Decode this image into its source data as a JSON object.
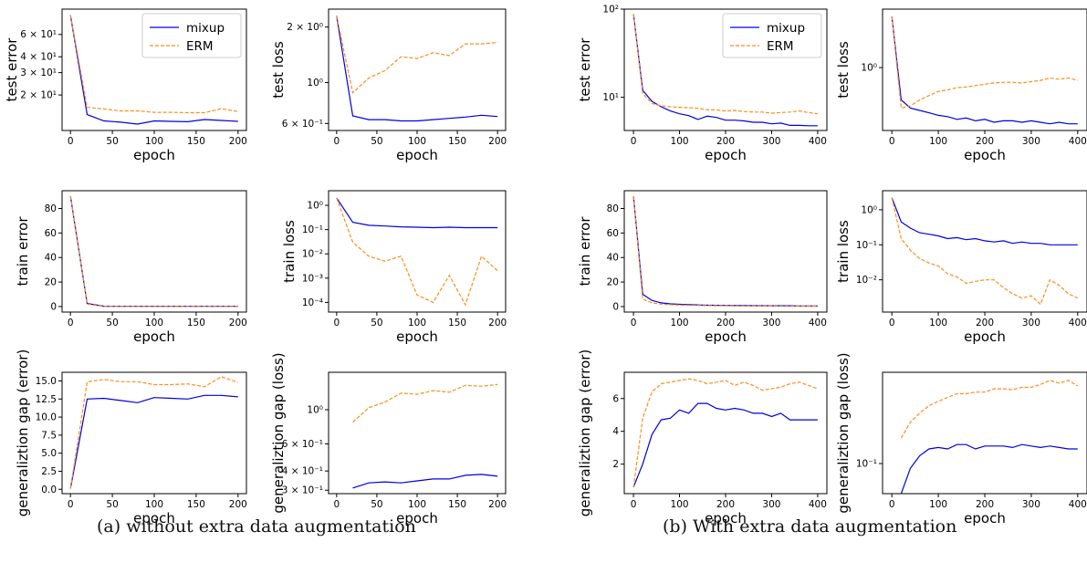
{
  "captions": {
    "a": "(a) without extra data augmentation",
    "b": "(b) With extra data augmentation"
  },
  "colors": {
    "mixup": "#0000dd",
    "erm": "#ff8c1a"
  },
  "chart_data": [
    {
      "panel": "a",
      "type": "line",
      "xlabel": "epoch",
      "ylabel": "test error",
      "yscale": "log",
      "xlim": [
        -10,
        210
      ],
      "ylim": [
        10.5,
        95
      ],
      "xticks": [
        "0",
        "50",
        "100",
        "150",
        "200"
      ],
      "yticks": [
        {
          "v": 20,
          "t": "2 × 10¹"
        },
        {
          "v": 30,
          "t": "3 × 10¹"
        },
        {
          "v": 40,
          "t": "4 × 10¹"
        },
        {
          "v": 60,
          "t": "6 × 10¹"
        }
      ],
      "legend": "top-right",
      "x": [
        0,
        20,
        40,
        60,
        80,
        100,
        120,
        140,
        160,
        180,
        200
      ],
      "series": [
        {
          "name": "mixup",
          "style": "solid",
          "values": [
            85,
            14,
            12.5,
            12.2,
            11.8,
            12.5,
            12.4,
            12.3,
            12.8,
            12.6,
            12.4
          ]
        },
        {
          "name": "ERM",
          "style": "dashed",
          "values": [
            85,
            16,
            15.5,
            15,
            15,
            14.6,
            14.6,
            14.5,
            14.5,
            15.6,
            14.8
          ]
        }
      ]
    },
    {
      "panel": "a",
      "type": "line",
      "xlabel": "epoch",
      "ylabel": "test loss",
      "yscale": "log",
      "xlim": [
        -10,
        210
      ],
      "ylim": [
        0.55,
        2.5
      ],
      "xticks": [
        "0",
        "50",
        "100",
        "150",
        "200"
      ],
      "yticks": [
        {
          "v": 0.6,
          "t": "6 × 10⁻¹"
        },
        {
          "v": 1,
          "t": "10⁰"
        },
        {
          "v": 2,
          "t": "2 × 10⁰"
        }
      ],
      "x": [
        0,
        20,
        40,
        60,
        80,
        100,
        120,
        140,
        160,
        180,
        200
      ],
      "series": [
        {
          "name": "mixup",
          "style": "solid",
          "values": [
            2.3,
            0.66,
            0.63,
            0.63,
            0.62,
            0.62,
            0.63,
            0.64,
            0.65,
            0.665,
            0.655
          ]
        },
        {
          "name": "ERM",
          "style": "dashed",
          "values": [
            2.3,
            0.88,
            1.06,
            1.16,
            1.38,
            1.35,
            1.45,
            1.4,
            1.62,
            1.62,
            1.65
          ]
        }
      ]
    },
    {
      "panel": "b",
      "type": "line",
      "xlabel": "epoch",
      "ylabel": "test error",
      "yscale": "log",
      "xlim": [
        -20,
        420
      ],
      "ylim": [
        4.2,
        100
      ],
      "xticks": [
        "0",
        "100",
        "200",
        "300",
        "400"
      ],
      "yticks": [
        {
          "v": 10,
          "t": "10¹"
        },
        {
          "v": 100,
          "t": "10²"
        }
      ],
      "legend": "top-right",
      "x": [
        0,
        20,
        40,
        60,
        80,
        100,
        120,
        140,
        160,
        180,
        200,
        220,
        240,
        260,
        280,
        300,
        320,
        340,
        360,
        380,
        400
      ],
      "series": [
        {
          "name": "mixup",
          "style": "solid",
          "values": [
            88,
            12,
            9,
            7.8,
            7,
            6.5,
            6.2,
            5.6,
            6.1,
            5.9,
            5.5,
            5.5,
            5.4,
            5.2,
            5.2,
            5.0,
            5.1,
            4.8,
            4.8,
            4.75,
            4.75
          ]
        },
        {
          "name": "ERM",
          "style": "dashed",
          "values": [
            88,
            11,
            8.5,
            8,
            7.8,
            7.7,
            7.6,
            7.5,
            7.2,
            7.2,
            7.0,
            7.1,
            6.9,
            6.8,
            6.8,
            6.6,
            6.7,
            6.8,
            7.0,
            6.7,
            6.5
          ]
        }
      ]
    },
    {
      "panel": "b",
      "type": "line",
      "xlabel": "epoch",
      "ylabel": "test loss",
      "yscale": "log",
      "xlim": [
        -20,
        420
      ],
      "ylim": [
        0.26,
        3.5
      ],
      "xticks": [
        "0",
        "100",
        "200",
        "300",
        "400"
      ],
      "yticks": [
        {
          "v": 1,
          "t": "10⁰"
        }
      ],
      "x": [
        0,
        20,
        40,
        60,
        80,
        100,
        120,
        140,
        160,
        180,
        200,
        220,
        240,
        260,
        280,
        300,
        320,
        340,
        360,
        380,
        400
      ],
      "series": [
        {
          "name": "mixup",
          "style": "solid",
          "values": [
            3.0,
            0.5,
            0.42,
            0.4,
            0.38,
            0.36,
            0.35,
            0.33,
            0.34,
            0.32,
            0.33,
            0.31,
            0.32,
            0.32,
            0.31,
            0.32,
            0.31,
            0.3,
            0.31,
            0.3,
            0.3
          ]
        },
        {
          "name": "ERM",
          "style": "dashed",
          "values": [
            3.0,
            0.42,
            0.44,
            0.5,
            0.55,
            0.6,
            0.62,
            0.65,
            0.66,
            0.68,
            0.7,
            0.72,
            0.73,
            0.73,
            0.72,
            0.74,
            0.76,
            0.8,
            0.78,
            0.8,
            0.76
          ]
        }
      ]
    },
    {
      "panel": "a",
      "type": "line",
      "xlabel": "epoch",
      "ylabel": "train error",
      "yscale": "linear",
      "xlim": [
        -10,
        210
      ],
      "ylim": [
        -4.5,
        94.5
      ],
      "xticks": [
        "0",
        "50",
        "100",
        "150",
        "200"
      ],
      "yticks": [
        {
          "v": 0,
          "t": "0"
        },
        {
          "v": 20,
          "t": "20"
        },
        {
          "v": 40,
          "t": "40"
        },
        {
          "v": 60,
          "t": "60"
        },
        {
          "v": 80,
          "t": "80"
        }
      ],
      "x": [
        0,
        20,
        40,
        60,
        80,
        100,
        120,
        140,
        160,
        180,
        200
      ],
      "series": [
        {
          "name": "mixup",
          "style": "solid",
          "values": [
            90,
            2.5,
            0.3,
            0.2,
            0.2,
            0.2,
            0.2,
            0.2,
            0.2,
            0.2,
            0.2
          ]
        },
        {
          "name": "ERM",
          "style": "dashed",
          "values": [
            90,
            2,
            0.1,
            0.1,
            0.1,
            0.1,
            0.1,
            0.1,
            0.1,
            0.1,
            0.1
          ]
        }
      ]
    },
    {
      "panel": "a",
      "type": "line",
      "xlabel": "epoch",
      "ylabel": "train loss",
      "yscale": "log",
      "xlim": [
        -10,
        210
      ],
      "ylim": [
        4e-05,
        4
      ],
      "xticks": [
        "0",
        "50",
        "100",
        "150",
        "200"
      ],
      "yticks": [
        {
          "v": 0.0001,
          "t": "10⁻⁴"
        },
        {
          "v": 0.001,
          "t": "10⁻³"
        },
        {
          "v": 0.01,
          "t": "10⁻²"
        },
        {
          "v": 0.1,
          "t": "10⁻¹"
        },
        {
          "v": 1,
          "t": "10⁰"
        }
      ],
      "x": [
        0,
        20,
        40,
        60,
        80,
        100,
        120,
        140,
        160,
        180,
        200
      ],
      "series": [
        {
          "name": "mixup",
          "style": "solid",
          "values": [
            2.0,
            0.2,
            0.15,
            0.14,
            0.13,
            0.125,
            0.12,
            0.125,
            0.12,
            0.12,
            0.12
          ]
        },
        {
          "name": "ERM",
          "style": "dashed",
          "values": [
            2.0,
            0.03,
            0.008,
            0.005,
            0.008,
            0.0002,
            0.0001,
            0.0013,
            8e-05,
            0.008,
            0.002
          ]
        }
      ]
    },
    {
      "panel": "b",
      "type": "line",
      "xlabel": "epoch",
      "ylabel": "train error",
      "yscale": "linear",
      "xlim": [
        -20,
        420
      ],
      "ylim": [
        -4.5,
        94.5
      ],
      "xticks": [
        "0",
        "100",
        "200",
        "300",
        "400"
      ],
      "yticks": [
        {
          "v": 0,
          "t": "0"
        },
        {
          "v": 20,
          "t": "20"
        },
        {
          "v": 40,
          "t": "40"
        },
        {
          "v": 60,
          "t": "60"
        },
        {
          "v": 80,
          "t": "80"
        }
      ],
      "x": [
        0,
        20,
        40,
        60,
        80,
        100,
        120,
        140,
        160,
        180,
        200,
        220,
        240,
        260,
        280,
        300,
        320,
        340,
        360,
        380,
        400
      ],
      "series": [
        {
          "name": "mixup",
          "style": "solid",
          "values": [
            90,
            10,
            5,
            3,
            2.2,
            1.8,
            1.5,
            1.3,
            1.1,
            1,
            0.9,
            0.8,
            0.8,
            0.7,
            0.7,
            0.6,
            0.6,
            0.6,
            0.5,
            0.5,
            0.5
          ]
        },
        {
          "name": "ERM",
          "style": "dashed",
          "values": [
            90,
            6,
            3,
            2,
            1.5,
            1.2,
            1,
            0.9,
            0.8,
            0.7,
            0.6,
            0.5,
            0.5,
            0.4,
            0.4,
            0.4,
            0.3,
            0.3,
            0.3,
            0.3,
            0.3
          ]
        }
      ]
    },
    {
      "panel": "b",
      "type": "line",
      "xlabel": "epoch",
      "ylabel": "train loss",
      "yscale": "log",
      "xlim": [
        -20,
        420
      ],
      "ylim": [
        0.0012,
        3.5
      ],
      "xticks": [
        "0",
        "100",
        "200",
        "300",
        "400"
      ],
      "yticks": [
        {
          "v": 0.01,
          "t": "10⁻²"
        },
        {
          "v": 0.1,
          "t": "10⁻¹"
        },
        {
          "v": 1,
          "t": "10⁰"
        }
      ],
      "x": [
        0,
        20,
        40,
        60,
        80,
        100,
        120,
        140,
        160,
        180,
        200,
        220,
        240,
        260,
        280,
        300,
        320,
        340,
        360,
        380,
        400
      ],
      "series": [
        {
          "name": "mixup",
          "style": "solid",
          "values": [
            2.2,
            0.45,
            0.3,
            0.22,
            0.2,
            0.18,
            0.15,
            0.16,
            0.14,
            0.15,
            0.13,
            0.12,
            0.13,
            0.11,
            0.12,
            0.11,
            0.11,
            0.1,
            0.1,
            0.1,
            0.1
          ]
        },
        {
          "name": "ERM",
          "style": "dashed",
          "values": [
            2.2,
            0.15,
            0.07,
            0.04,
            0.03,
            0.025,
            0.015,
            0.012,
            0.008,
            0.009,
            0.01,
            0.01,
            0.006,
            0.004,
            0.003,
            0.0035,
            0.002,
            0.01,
            0.007,
            0.004,
            0.003
          ]
        }
      ]
    },
    {
      "panel": "a",
      "type": "line",
      "xlabel": "epoch",
      "ylabel": "generaliztion gap (error)",
      "yscale": "linear",
      "xlim": [
        -10,
        210
      ],
      "ylim": [
        -0.6,
        16.2
      ],
      "xticks": [
        "0",
        "50",
        "100",
        "150",
        "200"
      ],
      "yticks": [
        {
          "v": 0,
          "t": "0.0"
        },
        {
          "v": 2.5,
          "t": "2.5"
        },
        {
          "v": 5,
          "t": "5.0"
        },
        {
          "v": 7.5,
          "t": "7.5"
        },
        {
          "v": 10,
          "t": "10.0"
        },
        {
          "v": 12.5,
          "t": "12.5"
        },
        {
          "v": 15,
          "t": "15.0"
        }
      ],
      "x": [
        0,
        20,
        40,
        60,
        80,
        100,
        120,
        140,
        160,
        180,
        200
      ],
      "series": [
        {
          "name": "mixup",
          "style": "solid",
          "values": [
            0.1,
            12.5,
            12.6,
            12.3,
            12.0,
            12.7,
            12.6,
            12.5,
            13.0,
            13.0,
            12.8
          ]
        },
        {
          "name": "ERM",
          "style": "dashed",
          "values": [
            0.1,
            14.9,
            15.2,
            14.9,
            14.9,
            14.5,
            14.5,
            14.6,
            14.2,
            15.6,
            14.8
          ]
        }
      ]
    },
    {
      "panel": "a",
      "type": "line",
      "xlabel": "epoch",
      "ylabel": "generaliztion gap (loss)",
      "yscale": "log",
      "xlim": [
        -10,
        210
      ],
      "ylim": [
        0.285,
        1.75
      ],
      "xticks": [
        "0",
        "50",
        "100",
        "150",
        "200"
      ],
      "yticks": [
        {
          "v": 0.3,
          "t": "3 × 10⁻¹"
        },
        {
          "v": 0.4,
          "t": "4 × 10⁻¹"
        },
        {
          "v": 0.6,
          "t": "6 × 10⁻¹"
        },
        {
          "v": 1,
          "t": "10⁰"
        }
      ],
      "x": [
        20,
        40,
        60,
        80,
        100,
        120,
        140,
        160,
        180,
        200
      ],
      "series": [
        {
          "name": "mixup",
          "style": "solid",
          "values": [
            0.31,
            0.335,
            0.34,
            0.335,
            0.345,
            0.355,
            0.355,
            0.375,
            0.38,
            0.37
          ]
        },
        {
          "name": "ERM",
          "style": "dashed",
          "values": [
            0.83,
            1.03,
            1.12,
            1.28,
            1.26,
            1.33,
            1.3,
            1.44,
            1.42,
            1.46
          ]
        }
      ]
    },
    {
      "panel": "b",
      "type": "line",
      "xlabel": "epoch",
      "ylabel": "generaliztion gap (error)",
      "yscale": "linear",
      "xlim": [
        -20,
        420
      ],
      "ylim": [
        0.2,
        7.6
      ],
      "xticks": [
        "0",
        "100",
        "200",
        "300",
        "400"
      ],
      "yticks": [
        {
          "v": 2,
          "t": "2"
        },
        {
          "v": 4,
          "t": "4"
        },
        {
          "v": 6,
          "t": "6"
        }
      ],
      "x": [
        0,
        20,
        40,
        60,
        80,
        100,
        120,
        140,
        160,
        180,
        200,
        220,
        240,
        260,
        280,
        300,
        320,
        340,
        360,
        380,
        400
      ],
      "series": [
        {
          "name": "mixup",
          "style": "solid",
          "values": [
            0.6,
            2,
            3.8,
            4.7,
            4.8,
            5.3,
            5.1,
            5.7,
            5.7,
            5.4,
            5.3,
            5.4,
            5.3,
            5.1,
            5.1,
            4.9,
            5.1,
            4.7,
            4.7,
            4.7,
            4.7
          ]
        },
        {
          "name": "ERM",
          "style": "dashed",
          "values": [
            0.6,
            4.8,
            6.4,
            6.9,
            7.0,
            7.1,
            7.2,
            7.1,
            6.9,
            7.0,
            7.1,
            6.8,
            7.0,
            6.8,
            6.5,
            6.6,
            6.7,
            6.9,
            7.0,
            6.8,
            6.6
          ]
        }
      ]
    },
    {
      "panel": "b",
      "type": "line",
      "xlabel": "epoch",
      "ylabel": "generaliztion gap (loss)",
      "yscale": "log",
      "xlim": [
        -20,
        420
      ],
      "ylim": [
        0.05,
        0.82
      ],
      "xticks": [
        "0",
        "100",
        "200",
        "300",
        "400"
      ],
      "yticks": [
        {
          "v": 0.1,
          "t": "10⁻¹"
        }
      ],
      "x": [
        20,
        40,
        60,
        80,
        100,
        120,
        140,
        160,
        180,
        200,
        220,
        240,
        260,
        280,
        300,
        320,
        340,
        360,
        380,
        400
      ],
      "series": [
        {
          "name": "mixup",
          "style": "solid",
          "values": [
            0.05,
            0.09,
            0.12,
            0.14,
            0.145,
            0.14,
            0.155,
            0.155,
            0.14,
            0.15,
            0.15,
            0.15,
            0.145,
            0.155,
            0.15,
            0.145,
            0.15,
            0.145,
            0.14,
            0.14
          ]
        },
        {
          "name": "ERM",
          "style": "dashed",
          "values": [
            0.18,
            0.26,
            0.32,
            0.38,
            0.42,
            0.46,
            0.5,
            0.5,
            0.52,
            0.52,
            0.56,
            0.56,
            0.55,
            0.58,
            0.58,
            0.62,
            0.68,
            0.64,
            0.68,
            0.6
          ]
        }
      ]
    }
  ]
}
